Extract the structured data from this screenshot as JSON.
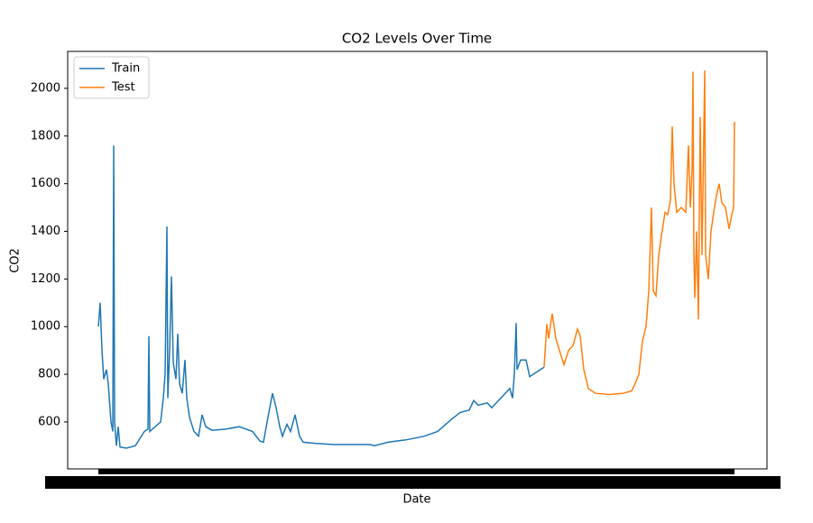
{
  "chart_data": {
    "type": "line",
    "title": "CO2 Levels Over Time",
    "x_label": "Date",
    "y_label": "CO2",
    "xlim": [
      75,
      850
    ],
    "ylim": [
      403,
      2155
    ],
    "yticks": [
      600,
      800,
      1000,
      1200,
      1400,
      1600,
      1800,
      2000
    ],
    "legend": "upper left",
    "series": [
      {
        "name": "Train",
        "color": "#1f77b4",
        "x": [
          109,
          111,
          113,
          115,
          118,
          120,
          123,
          125,
          126,
          127,
          129,
          131,
          133,
          140,
          150,
          155,
          160,
          164,
          165,
          166,
          172,
          178,
          181,
          183,
          185,
          186,
          188,
          190,
          192,
          195,
          197,
          199,
          202,
          205,
          207,
          210,
          215,
          220,
          224,
          228,
          235,
          250,
          265,
          280,
          288,
          292,
          296,
          302,
          306,
          310,
          313,
          318,
          322,
          327,
          332,
          336,
          350,
          370,
          390,
          410,
          415,
          430,
          450,
          470,
          485,
          500,
          510,
          520,
          525,
          530,
          540,
          545,
          555,
          565,
          568,
          570,
          572,
          573,
          577,
          583,
          587,
          595,
          603
        ],
        "values": [
          1000,
          1100,
          900,
          780,
          820,
          760,
          600,
          560,
          1760,
          600,
          500,
          580,
          495,
          490,
          500,
          530,
          560,
          570,
          960,
          560,
          580,
          600,
          700,
          800,
          1420,
          700,
          900,
          1210,
          850,
          780,
          970,
          760,
          720,
          860,
          700,
          620,
          560,
          540,
          630,
          580,
          565,
          570,
          580,
          560,
          520,
          515,
          600,
          720,
          660,
          580,
          540,
          590,
          560,
          630,
          540,
          515,
          510,
          505,
          505,
          505,
          500,
          515,
          525,
          540,
          560,
          610,
          640,
          650,
          690,
          670,
          680,
          660,
          700,
          740,
          700,
          800,
          1015,
          820,
          860,
          860,
          790,
          810,
          830
        ]
      },
      {
        "name": "Test",
        "color": "#ff7f0e",
        "x": [
          603,
          606,
          608,
          612,
          616,
          620,
          625,
          630,
          635,
          640,
          643,
          647,
          652,
          660,
          675,
          690,
          700,
          705,
          708,
          712,
          716,
          719,
          722,
          724,
          727,
          730,
          733,
          737,
          740,
          743,
          745,
          747,
          750,
          755,
          760,
          763,
          765,
          767,
          768,
          769,
          770,
          772,
          774,
          776,
          778,
          781,
          782,
          785,
          788,
          791,
          794,
          797,
          800,
          804,
          808,
          811,
          813,
          814
        ],
        "values": [
          830,
          1010,
          950,
          1055,
          950,
          900,
          840,
          900,
          920,
          990,
          960,
          820,
          740,
          720,
          715,
          720,
          730,
          770,
          800,
          940,
          1000,
          1150,
          1500,
          1150,
          1130,
          1300,
          1380,
          1480,
          1470,
          1530,
          1840,
          1600,
          1480,
          1500,
          1480,
          1760,
          1500,
          1660,
          2070,
          1300,
          1120,
          1400,
          1030,
          1880,
          1300,
          2075,
          1300,
          1200,
          1400,
          1480,
          1550,
          1600,
          1520,
          1500,
          1410,
          1470,
          1500,
          1860
        ]
      }
    ]
  }
}
